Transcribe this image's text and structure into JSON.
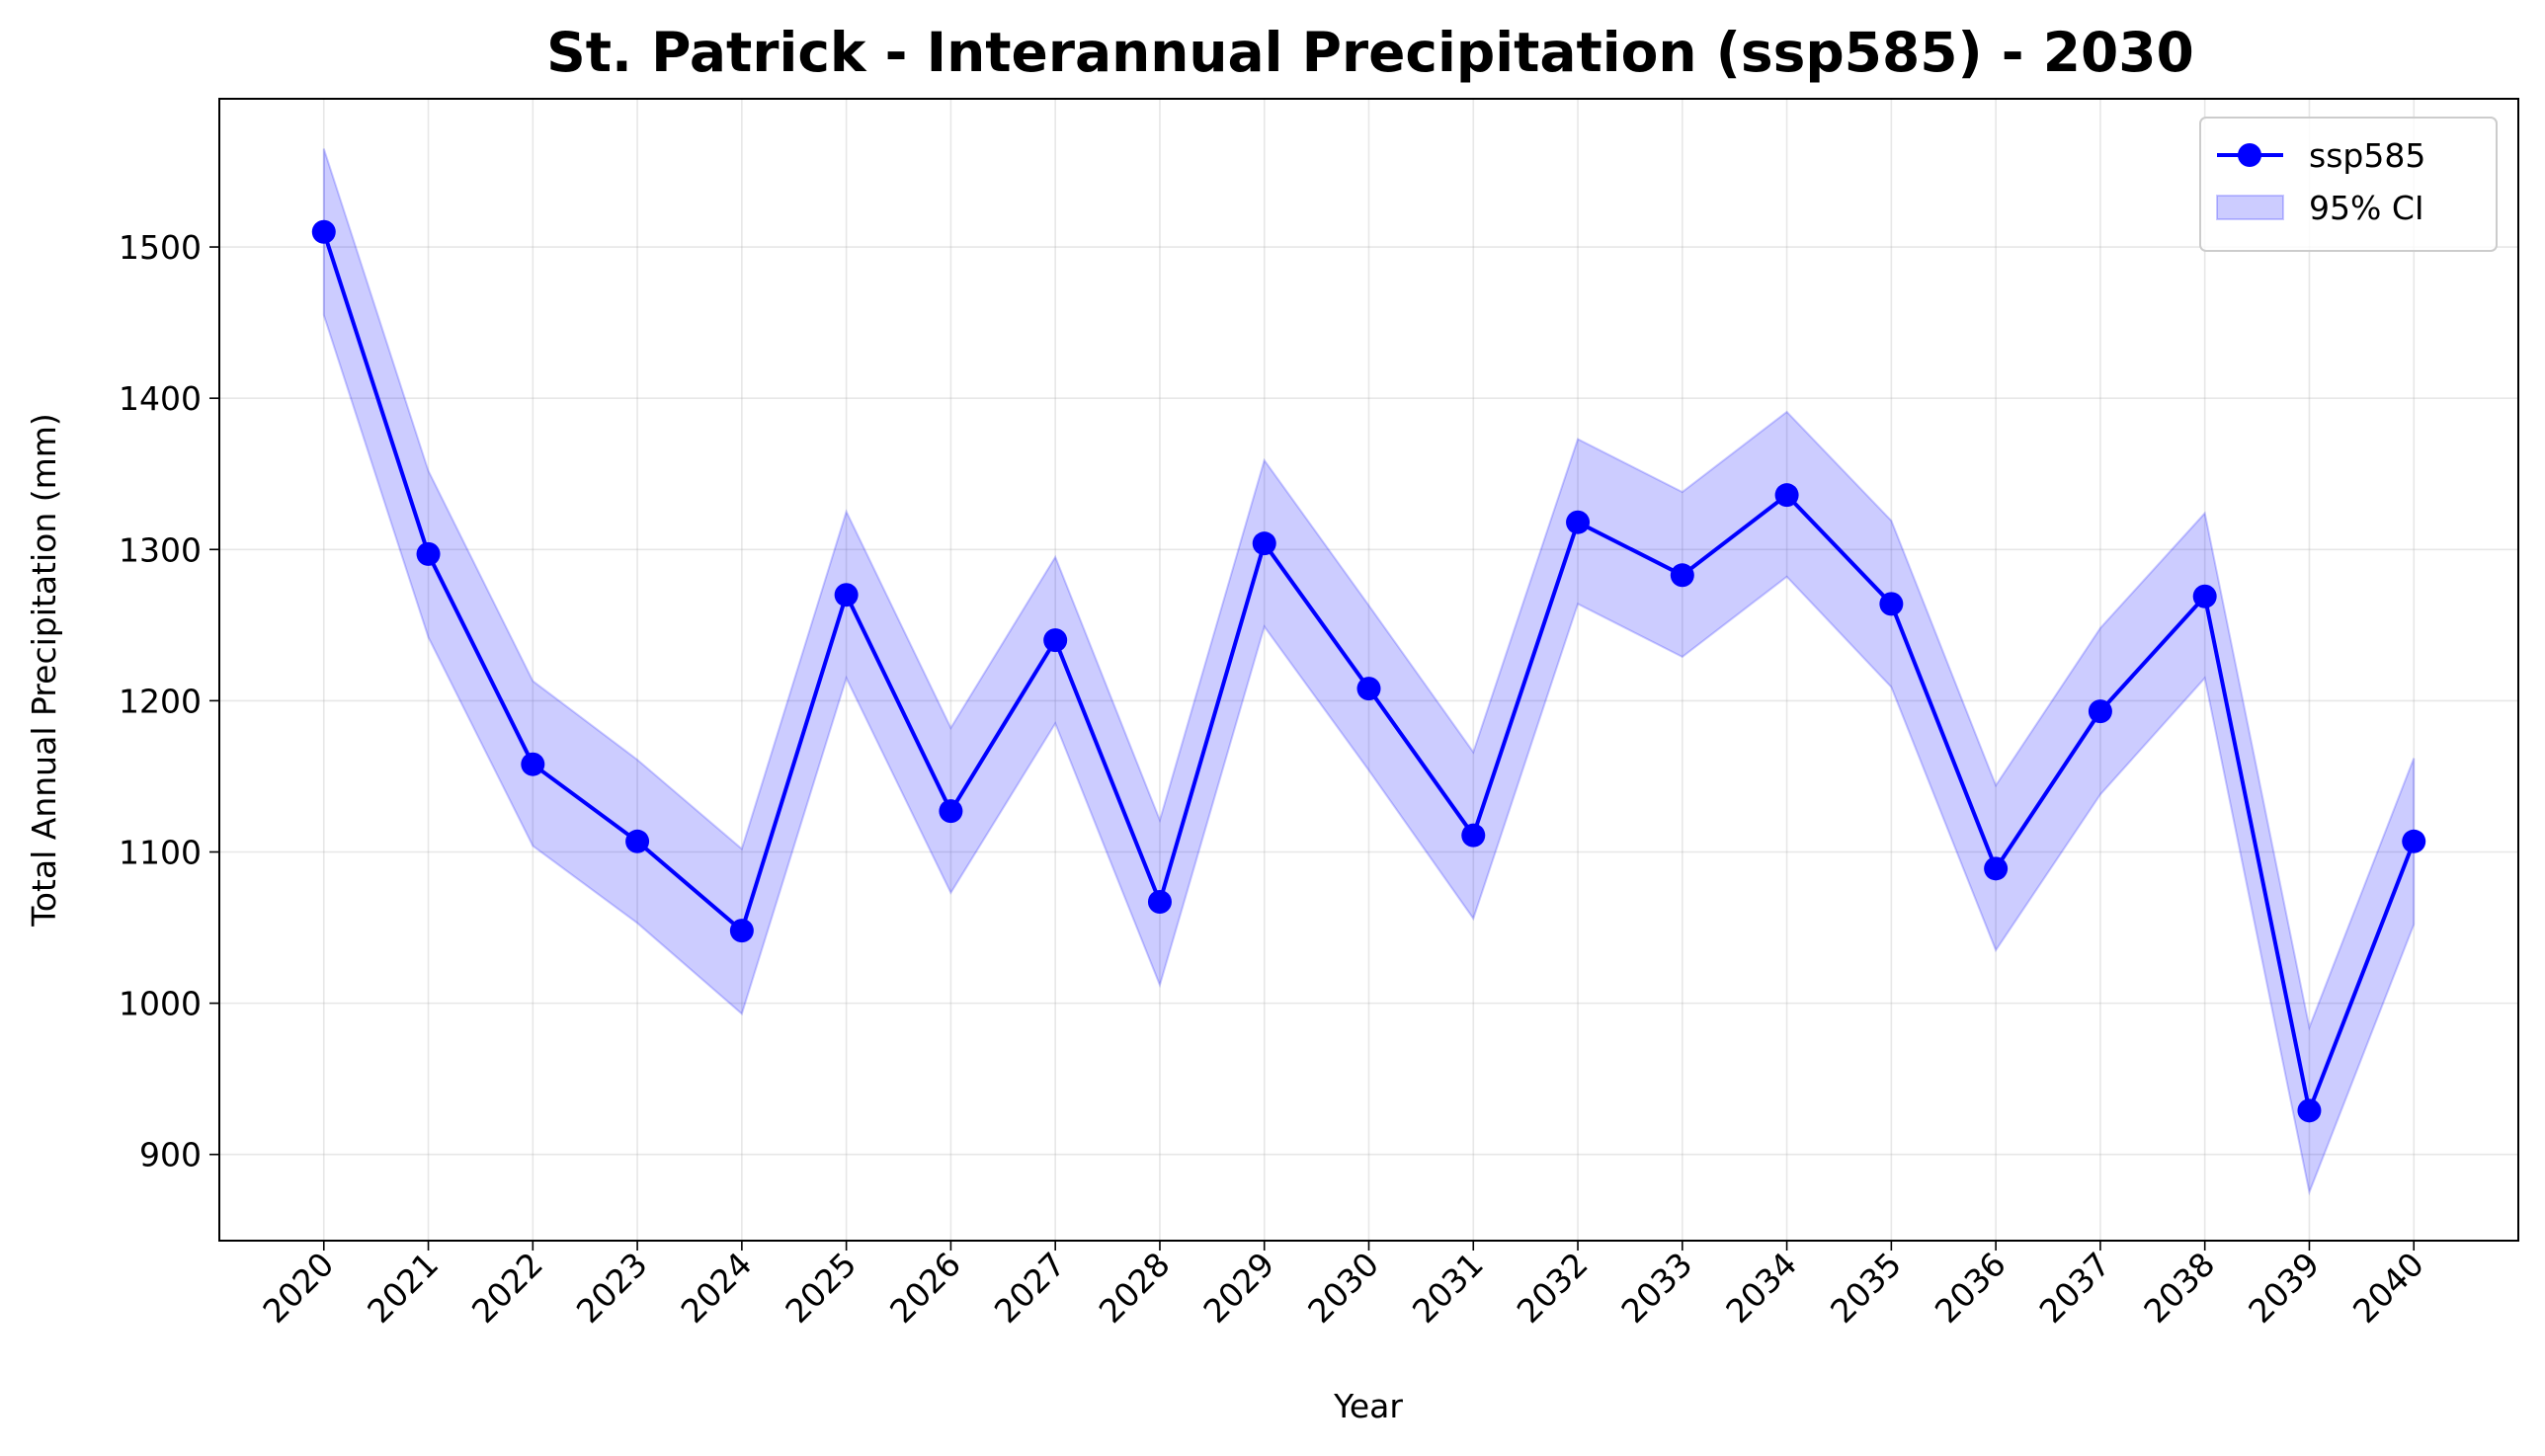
{
  "chart_data": {
    "type": "line",
    "title": "St. Patrick - Interannual Precipitation (ssp585) - 2030",
    "xlabel": "Year",
    "ylabel": "Total Annual Precipitation (mm)",
    "x": [
      "2020",
      "2021",
      "2022",
      "2023",
      "2024",
      "2025",
      "2026",
      "2027",
      "2028",
      "2029",
      "2030",
      "2031",
      "2032",
      "2033",
      "2034",
      "2035",
      "2036",
      "2037",
      "2038",
      "2039",
      "2040"
    ],
    "xlim": [
      2019,
      2041
    ],
    "ylim": [
      843,
      1598
    ],
    "yticks": [
      900,
      1000,
      1100,
      1200,
      1300,
      1400,
      1500
    ],
    "grid": true,
    "legend_position": "top-right",
    "series": [
      {
        "name": "ssp585",
        "color": "#0000ff",
        "marker": "circle",
        "values": [
          1510,
          1297,
          1158,
          1107,
          1048,
          1270,
          1127,
          1240,
          1067,
          1304,
          1208,
          1111,
          1318,
          1283,
          1336,
          1264,
          1089,
          1193,
          1269,
          929,
          1107
        ]
      }
    ],
    "band": {
      "name": "95% CI",
      "color": "#0000ff",
      "opacity": 0.2,
      "lower": [
        1455,
        1242,
        1104,
        1053,
        993,
        1215,
        1073,
        1185,
        1012,
        1249,
        1154,
        1056,
        1264,
        1229,
        1282,
        1209,
        1035,
        1138,
        1215,
        875,
        1052
      ],
      "upper": [
        1565,
        1352,
        1213,
        1161,
        1102,
        1325,
        1182,
        1295,
        1121,
        1359,
        1263,
        1166,
        1373,
        1338,
        1391,
        1319,
        1144,
        1248,
        1324,
        984,
        1162
      ]
    }
  }
}
